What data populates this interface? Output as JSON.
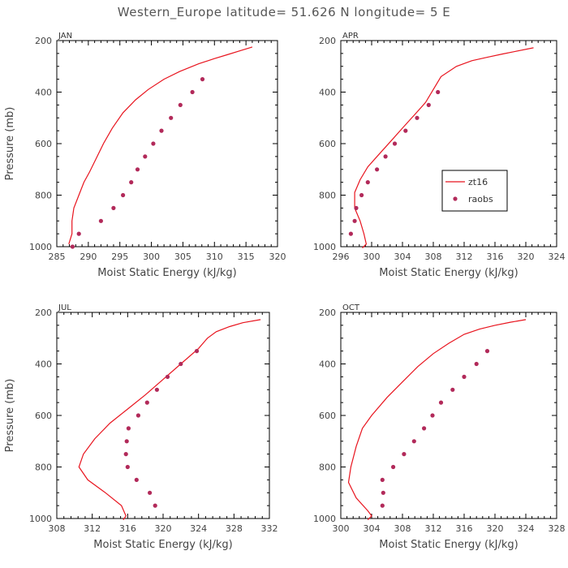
{
  "figure": {
    "title": "Western_Europe  latitude= 51.626 N longitude= 5 E"
  },
  "colors": {
    "model_line": "#e8141e",
    "raobs_dot": "#b22a5a",
    "axis": "#000000"
  },
  "legend": {
    "entries": [
      {
        "label": "zt16",
        "kind": "line"
      },
      {
        "label": "raobs",
        "kind": "marker"
      }
    ],
    "placement": "panel APR, right-middle"
  },
  "chart_data": [
    {
      "type": "line",
      "panel": "JAN",
      "xlabel": "Moist Static Energy (kJ/kg)",
      "ylabel": "Pressure (mb)",
      "xlim": [
        285,
        320
      ],
      "xticks": [
        285,
        290,
        295,
        300,
        305,
        310,
        315,
        320
      ],
      "ylim": [
        1000,
        200
      ],
      "yticks": [
        200,
        400,
        600,
        800,
        1000
      ],
      "series": [
        {
          "name": "zt16",
          "kind": "line",
          "points": [
            [
              316.0,
              225
            ],
            [
              314.0,
              240
            ],
            [
              312.0,
              255
            ],
            [
              310.0,
              270
            ],
            [
              307.5,
              290
            ],
            [
              304.5,
              320
            ],
            [
              302.0,
              350
            ],
            [
              299.5,
              390
            ],
            [
              297.5,
              430
            ],
            [
              295.5,
              480
            ],
            [
              293.8,
              540
            ],
            [
              292.4,
              600
            ],
            [
              291.2,
              660
            ],
            [
              290.2,
              710
            ],
            [
              289.3,
              750
            ],
            [
              288.5,
              800
            ],
            [
              287.7,
              850
            ],
            [
              287.4,
              900
            ],
            [
              287.4,
              950
            ],
            [
              286.9,
              990
            ]
          ]
        },
        {
          "name": "raobs",
          "kind": "marker",
          "points": [
            [
              287.5,
              1000
            ],
            [
              288.5,
              950
            ],
            [
              292.0,
              900
            ],
            [
              294.0,
              850
            ],
            [
              295.5,
              800
            ],
            [
              296.8,
              750
            ],
            [
              297.8,
              700
            ],
            [
              299.0,
              650
            ],
            [
              300.3,
              600
            ],
            [
              301.6,
              550
            ],
            [
              303.1,
              500
            ],
            [
              304.6,
              450
            ],
            [
              306.5,
              400
            ],
            [
              308.1,
              350
            ]
          ]
        }
      ]
    },
    {
      "type": "line",
      "panel": "APR",
      "xlabel": "Moist Static Energy (kJ/kg)",
      "ylabel": "",
      "xlim": [
        296,
        324
      ],
      "xticks": [
        296,
        300,
        304,
        308,
        312,
        316,
        320,
        324
      ],
      "ylim": [
        1000,
        200
      ],
      "yticks": [
        200,
        400,
        600,
        800,
        1000
      ],
      "series": [
        {
          "name": "zt16",
          "kind": "line",
          "points": [
            [
              321.0,
              228
            ],
            [
              319.0,
              240
            ],
            [
              317.0,
              252
            ],
            [
              315.0,
              265
            ],
            [
              313.0,
              278
            ],
            [
              311.0,
              300
            ],
            [
              309.0,
              340
            ],
            [
              308.0,
              390
            ],
            [
              307.0,
              440
            ],
            [
              305.5,
              490
            ],
            [
              304.0,
              540
            ],
            [
              302.5,
              590
            ],
            [
              301.0,
              640
            ],
            [
              299.5,
              690
            ],
            [
              298.5,
              740
            ],
            [
              297.8,
              790
            ],
            [
              297.8,
              850
            ],
            [
              298.5,
              900
            ],
            [
              299.0,
              950
            ],
            [
              299.3,
              990
            ],
            [
              298.8,
              1005
            ]
          ]
        },
        {
          "name": "raobs",
          "kind": "marker",
          "points": [
            [
              297.3,
              950
            ],
            [
              297.8,
              900
            ],
            [
              298.0,
              850
            ],
            [
              298.7,
              800
            ],
            [
              299.5,
              750
            ],
            [
              300.7,
              700
            ],
            [
              301.8,
              650
            ],
            [
              303.0,
              600
            ],
            [
              304.4,
              550
            ],
            [
              305.9,
              500
            ],
            [
              307.4,
              450
            ],
            [
              308.6,
              400
            ]
          ]
        }
      ]
    },
    {
      "type": "line",
      "panel": "JUL",
      "xlabel": "Moist Static Energy (kJ/kg)",
      "ylabel": "Pressure (mb)",
      "xlim": [
        308,
        332
      ],
      "xticks": [
        308,
        312,
        316,
        320,
        324,
        328,
        332
      ],
      "ylim": [
        1000,
        200
      ],
      "yticks": [
        200,
        400,
        600,
        800,
        1000
      ],
      "series": [
        {
          "name": "zt16",
          "kind": "line",
          "points": [
            [
              331.0,
              228
            ],
            [
              329.0,
              240
            ],
            [
              327.5,
              255
            ],
            [
              326.0,
              275
            ],
            [
              325.0,
              300
            ],
            [
              324.0,
              340
            ],
            [
              322.0,
              400
            ],
            [
              320.0,
              460
            ],
            [
              318.0,
              520
            ],
            [
              316.0,
              575
            ],
            [
              314.0,
              630
            ],
            [
              312.3,
              690
            ],
            [
              311.0,
              750
            ],
            [
              310.5,
              800
            ],
            [
              311.5,
              850
            ],
            [
              313.5,
              900
            ],
            [
              315.3,
              950
            ],
            [
              315.8,
              990
            ],
            [
              315.5,
              1005
            ]
          ]
        },
        {
          "name": "raobs",
          "kind": "marker",
          "points": [
            [
              319.1,
              950
            ],
            [
              318.5,
              900
            ],
            [
              317.0,
              850
            ],
            [
              316.0,
              800
            ],
            [
              315.8,
              750
            ],
            [
              315.9,
              700
            ],
            [
              316.1,
              650
            ],
            [
              317.2,
              600
            ],
            [
              318.2,
              550
            ],
            [
              319.3,
              500
            ],
            [
              320.5,
              450
            ],
            [
              322.0,
              400
            ],
            [
              323.8,
              350
            ]
          ]
        }
      ]
    },
    {
      "type": "line",
      "panel": "OCT",
      "xlabel": "Moist Static Energy (kJ/kg)",
      "ylabel": "",
      "xlim": [
        300,
        328
      ],
      "xticks": [
        300,
        304,
        308,
        312,
        316,
        320,
        324,
        328
      ],
      "ylim": [
        1000,
        200
      ],
      "yticks": [
        200,
        400,
        600,
        800,
        1000
      ],
      "series": [
        {
          "name": "zt16",
          "kind": "line",
          "points": [
            [
              324.0,
              228
            ],
            [
              322.0,
              238
            ],
            [
              320.0,
              250
            ],
            [
              318.0,
              265
            ],
            [
              316.0,
              285
            ],
            [
              314.0,
              320
            ],
            [
              312.0,
              360
            ],
            [
              310.0,
              410
            ],
            [
              308.0,
              470
            ],
            [
              306.0,
              530
            ],
            [
              304.0,
              600
            ],
            [
              302.8,
              650
            ],
            [
              302.0,
              720
            ],
            [
              301.3,
              800
            ],
            [
              301.0,
              860
            ],
            [
              302.0,
              920
            ],
            [
              303.5,
              970
            ],
            [
              304.0,
              990
            ],
            [
              303.5,
              1005
            ]
          ]
        },
        {
          "name": "raobs",
          "kind": "marker",
          "points": [
            [
              305.4,
              950
            ],
            [
              305.5,
              900
            ],
            [
              305.4,
              850
            ],
            [
              306.8,
              800
            ],
            [
              308.2,
              750
            ],
            [
              309.5,
              700
            ],
            [
              310.8,
              650
            ],
            [
              311.9,
              600
            ],
            [
              313.0,
              550
            ],
            [
              314.5,
              500
            ],
            [
              316.0,
              450
            ],
            [
              317.6,
              400
            ],
            [
              319.0,
              350
            ]
          ]
        }
      ]
    }
  ]
}
